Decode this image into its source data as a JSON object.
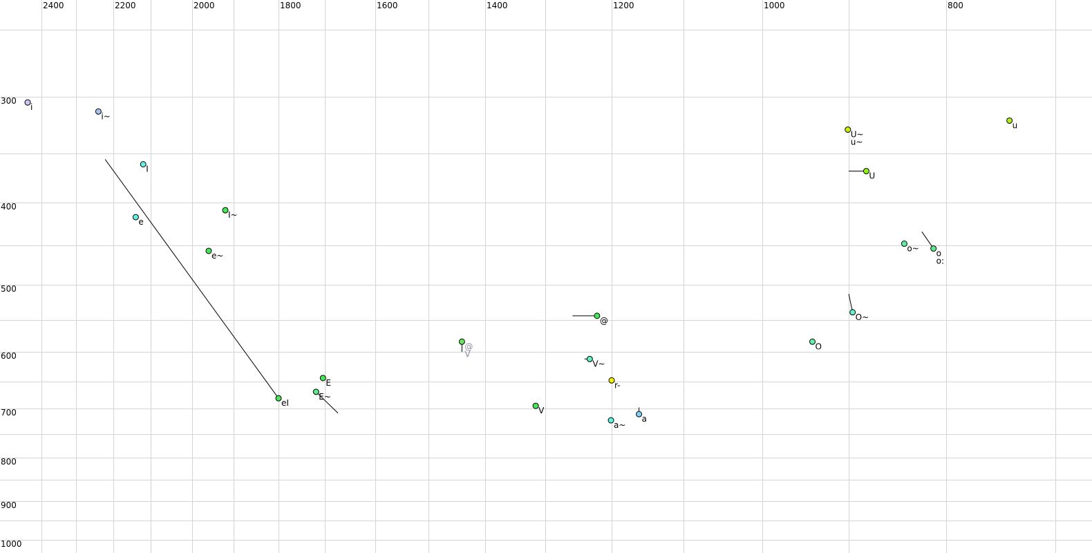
{
  "chart_data": {
    "type": "scatter",
    "title": "",
    "xlabel": "",
    "ylabel": "",
    "x_axis": {
      "reversed": true,
      "scale": "auditory (bark-like)",
      "ticks_labeled": [
        2400,
        2200,
        2000,
        1800,
        1600,
        1400,
        1200,
        1000,
        800
      ],
      "gridlines": [
        2400,
        2300,
        2200,
        2100,
        2000,
        1900,
        1800,
        1700,
        1600,
        1500,
        1400,
        1300,
        1200,
        1100,
        1000,
        900,
        800,
        700
      ],
      "position": "top"
    },
    "y_axis": {
      "reversed": false,
      "scale": "auditory (bark-like)",
      "ticks_labeled": [
        300,
        400,
        500,
        600,
        700,
        800,
        900,
        1000
      ],
      "gridlines": [
        250,
        300,
        350,
        400,
        450,
        500,
        550,
        600,
        650,
        700,
        750,
        800,
        850,
        900,
        950,
        1000
      ],
      "position": "left"
    },
    "grid": true,
    "points": [
      {
        "labels": [
          "i"
        ],
        "f2": 2440,
        "f1": 305,
        "color": "#cfc6f2"
      },
      {
        "labels": [
          "i~"
        ],
        "f2": 2240,
        "f1": 313,
        "color": "#a6c4f2"
      },
      {
        "labels": [
          "I"
        ],
        "f2": 2120,
        "f1": 361,
        "color": "#66f0e0"
      },
      {
        "labels": [
          "e"
        ],
        "f2": 2140,
        "f1": 417,
        "color": "#66f0e0"
      },
      {
        "labels": [
          "I~"
        ],
        "f2": 1920,
        "f1": 409,
        "color": "#44e856",
        "trail": [
          1915,
          406
        ]
      },
      {
        "labels": [
          "e~"
        ],
        "f2": 1960,
        "f1": 457,
        "color": "#44e856"
      },
      {
        "labels": [
          "eI"
        ],
        "f2": 1800,
        "f1": 681,
        "color": "#44e856",
        "trail": [
          2222,
          356
        ]
      },
      {
        "labels": [
          "E"
        ],
        "f2": 1704,
        "f1": 644,
        "color": "#44e856"
      },
      {
        "labels": [
          "E~"
        ],
        "f2": 1719,
        "f1": 669,
        "color": "#5ee88c",
        "trail": [
          1674,
          709
        ]
      },
      {
        "labels": [
          "@",
          "V"
        ],
        "f2": 1441,
        "f1": 584,
        "color": "#66e856",
        "label_color": "#8a8aa0",
        "trail": [
          1441,
          600
        ]
      },
      {
        "labels": [
          "V"
        ],
        "f2": 1316,
        "f1": 695,
        "color": "#44e856"
      },
      {
        "labels": [
          "@"
        ],
        "f2": 1222,
        "f1": 544,
        "color": "#44e856",
        "trail": [
          1259,
          544
        ]
      },
      {
        "labels": [
          "V~"
        ],
        "f2": 1233,
        "f1": 612,
        "color": "#5ef0c0",
        "trail": [
          1241,
          612
        ]
      },
      {
        "labels": [
          "r-"
        ],
        "f2": 1200,
        "f1": 648,
        "color": "#f0f000",
        "trail": [
          1200,
          643
        ]
      },
      {
        "labels": [
          "a~"
        ],
        "f2": 1201,
        "f1": 723,
        "color": "#5ef0e0"
      },
      {
        "labels": [
          "a"
        ],
        "f2": 1162,
        "f1": 711,
        "color": "#80d0f2",
        "trail": [
          1162,
          698
        ]
      },
      {
        "labels": [
          "O"
        ],
        "f2": 942,
        "f1": 584,
        "color": "#5ef0a8"
      },
      {
        "labels": [
          "O~"
        ],
        "f2": 896,
        "f1": 539,
        "color": "#5ef0d0",
        "trail": [
          900,
          513
        ]
      },
      {
        "labels": [
          "U~",
          "u~"
        ],
        "f2": 901,
        "f1": 329,
        "color": "#c8f000"
      },
      {
        "labels": [
          "U"
        ],
        "f2": 882,
        "f1": 368,
        "color": "#90f010",
        "trail": [
          900,
          368
        ]
      },
      {
        "labels": [
          "o~"
        ],
        "f2": 843,
        "f1": 448,
        "color": "#5ef0a8"
      },
      {
        "labels": [
          "o",
          "o:"
        ],
        "f2": 813,
        "f1": 454,
        "color": "#5ee890",
        "trail": [
          825,
          434
        ]
      },
      {
        "labels": [
          "u"
        ],
        "f2": 742,
        "f1": 321,
        "color": "#b0f020"
      }
    ]
  }
}
